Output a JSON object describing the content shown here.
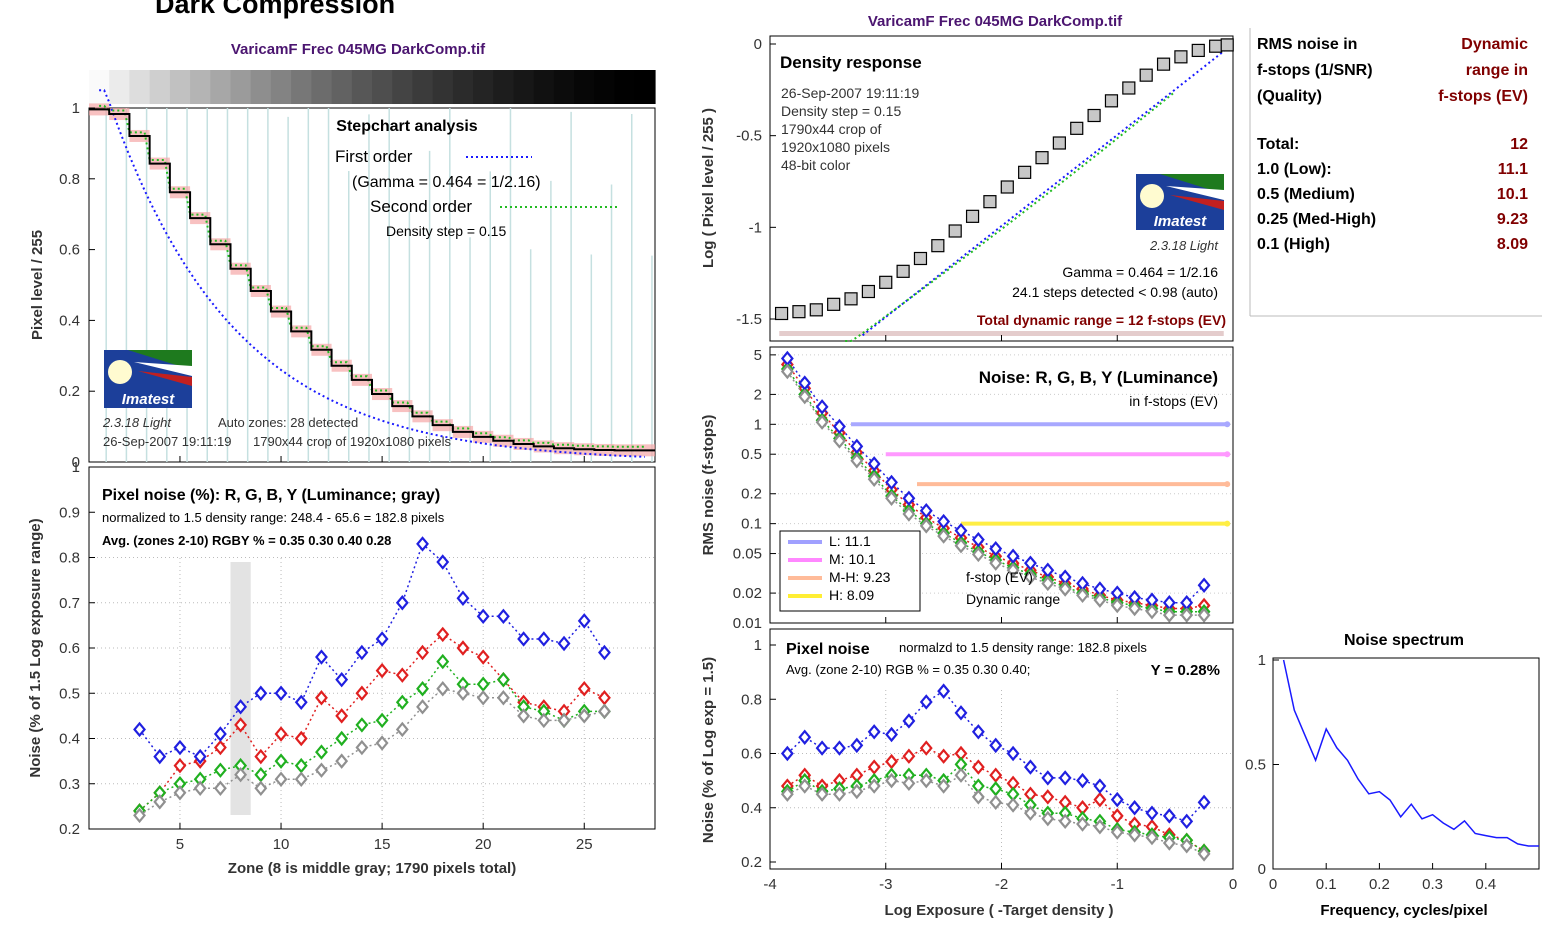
{
  "page": {
    "header_text": "Dark Compression",
    "file_title": "VaricamF Frec 045MG DarkComp.tif",
    "logo_text": "Imatest",
    "version_text": "2.3.18  Light"
  },
  "chart_data": [
    {
      "id": "stepchart",
      "type": "line",
      "title": "Stepchart analysis",
      "xlabel": "",
      "ylabel": "Pixel level / 255",
      "xlim": [
        0.5,
        28.5
      ],
      "ylim": [
        0,
        1
      ],
      "yticks": [
        "0",
        "0.2",
        "0.4",
        "0.6",
        "0.8",
        "1"
      ],
      "legend_title": "Stepchart analysis",
      "legend_first": "First order",
      "legend_gamma": "(Gamma = 0.464 = 1/2.16)",
      "legend_second": "Second order",
      "legend_density": "Density step = 0.15",
      "info_zones": "Auto zones:  28 detected",
      "info_date": "26-Sep-2007 19:11:19",
      "info_crop": "1790x44 crop of 1920x1080 pixels",
      "steps": [
        0.996,
        0.983,
        0.921,
        0.843,
        0.762,
        0.689,
        0.615,
        0.546,
        0.483,
        0.425,
        0.369,
        0.317,
        0.272,
        0.232,
        0.192,
        0.158,
        0.129,
        0.104,
        0.085,
        0.071,
        0.06,
        0.051,
        0.044,
        0.039,
        0.036,
        0.034,
        0.033,
        0.033
      ],
      "colors": {
        "measured": "#000000",
        "first_order": "#1a1aff",
        "second_order": "#22bb22",
        "band": "#f4a0a0",
        "spikes": "#c5e0e0"
      }
    },
    {
      "id": "zone-noise",
      "type": "scatter",
      "title": "Pixel noise (%): R, G, B, Y (Luminance; gray)",
      "subtitle": "normalized to 1.5 density range: 248.4 - 65.6 = 182.8 pixels",
      "note": "Avg. (zones 2-10) RGBY % = 0.35  0.30  0.40  0.28",
      "xlabel": "Zone  (8 is middle gray;  1790 pixels total)",
      "ylabel": "Noise (% of 1.5 Log exposure range)",
      "xlim": [
        0.5,
        28.5
      ],
      "ylim": [
        0.2,
        1.0
      ],
      "xticks": [
        "5",
        "10",
        "15",
        "20",
        "25"
      ],
      "yticks": [
        "0.2",
        "0.3",
        "0.4",
        "0.5",
        "0.6",
        "0.7",
        "0.8",
        "0.9",
        "1"
      ],
      "highlight_zone": 8,
      "x": [
        3,
        4,
        5,
        6,
        7,
        8,
        9,
        10,
        11,
        12,
        13,
        14,
        15,
        16,
        17,
        18,
        19,
        20,
        21,
        22,
        23,
        24,
        25,
        26
      ],
      "series": [
        {
          "name": "R",
          "color": "#e02020",
          "values": [
            0.24,
            0.28,
            0.34,
            0.35,
            0.38,
            0.43,
            0.36,
            0.41,
            0.4,
            0.49,
            0.45,
            0.5,
            0.55,
            0.54,
            0.59,
            0.63,
            0.6,
            0.58,
            0.53,
            0.48,
            0.47,
            0.46,
            0.51,
            0.49
          ]
        },
        {
          "name": "G",
          "color": "#20b020",
          "values": [
            0.24,
            0.28,
            0.3,
            0.31,
            0.33,
            0.34,
            0.32,
            0.35,
            0.34,
            0.37,
            0.4,
            0.43,
            0.44,
            0.48,
            0.51,
            0.57,
            0.52,
            0.52,
            0.53,
            0.47,
            0.46,
            0.44,
            0.46,
            0.46
          ]
        },
        {
          "name": "B",
          "color": "#2020e0",
          "values": [
            0.42,
            0.36,
            0.38,
            0.36,
            0.41,
            0.47,
            0.5,
            0.5,
            0.48,
            0.58,
            0.53,
            0.59,
            0.62,
            0.7,
            0.83,
            0.79,
            0.71,
            0.67,
            0.67,
            0.62,
            0.62,
            0.61,
            0.66,
            0.59
          ]
        },
        {
          "name": "Y",
          "color": "#909090",
          "values": [
            0.23,
            0.26,
            0.28,
            0.29,
            0.29,
            0.32,
            0.29,
            0.31,
            0.31,
            0.33,
            0.35,
            0.38,
            0.39,
            0.42,
            0.47,
            0.51,
            0.5,
            0.49,
            0.49,
            0.45,
            0.44,
            0.44,
            0.45,
            0.46
          ]
        }
      ]
    },
    {
      "id": "density-response",
      "type": "scatter",
      "title": "Density response",
      "ylabel": "Log ( Pixel level / 255 )",
      "xlim": [
        -4,
        0
      ],
      "ylim": [
        -1.62,
        0
      ],
      "yticks": [
        "-1.5",
        "-1",
        "-0.5",
        "0"
      ],
      "info_lines": [
        "26-Sep-2007 19:11:19",
        "Density step = 0.15",
        "1790x44 crop of",
        "1920x1080 pixels",
        "48-bit color"
      ],
      "gamma_text": "Gamma = 0.464 = 1/2.16",
      "steps_text": "24.1 steps detected < 0.98 (auto)",
      "dr_text": "Total dynamic range = 12 f-stops (EV)",
      "x": [
        -3.9,
        -3.75,
        -3.6,
        -3.45,
        -3.3,
        -3.15,
        -3.0,
        -2.85,
        -2.7,
        -2.55,
        -2.4,
        -2.25,
        -2.1,
        -1.95,
        -1.8,
        -1.65,
        -1.5,
        -1.35,
        -1.2,
        -1.05,
        -0.9,
        -0.75,
        -0.6,
        -0.45,
        -0.3,
        -0.15,
        -0.05
      ],
      "values": [
        -1.47,
        -1.46,
        -1.45,
        -1.42,
        -1.39,
        -1.35,
        -1.3,
        -1.24,
        -1.17,
        -1.1,
        -1.02,
        -0.94,
        -0.86,
        -0.78,
        -0.7,
        -0.62,
        -0.54,
        -0.46,
        -0.39,
        -0.31,
        -0.24,
        -0.17,
        -0.11,
        -0.07,
        -0.035,
        -0.012,
        -0.005
      ],
      "colors": {
        "marker": "#c8c8c8",
        "fit": "#1a1aff",
        "second": "#22bb22",
        "range_bar": "#c89090",
        "dr_text": "#800000"
      }
    },
    {
      "id": "fstop-noise",
      "type": "scatter",
      "title": "Noise: R, G, B, Y (Luminance)",
      "subtitle": "in f-stops (EV)",
      "ylabel": "RMS noise (f-stops)",
      "ylog": true,
      "xlim": [
        -4,
        0
      ],
      "ylim": [
        0.01,
        6
      ],
      "yticks": [
        "0.01",
        "0.02",
        "0.05",
        "0.1",
        "0.2",
        "0.5",
        "1",
        "2",
        "5"
      ],
      "annot1": "f-stop (EV)",
      "annot2": "Dynamic range",
      "legend": [
        {
          "label": "L:    11.1",
          "color": "#a0a0ff"
        },
        {
          "label": "M:    10.1",
          "color": "#ff88ff"
        },
        {
          "label": "M-H: 9.23",
          "color": "#ffbb99"
        },
        {
          "label": "H:     8.09",
          "color": "#ffee33"
        }
      ],
      "levels": [
        {
          "y": 1.0,
          "x_start": -3.3,
          "color": "#a8a8ff"
        },
        {
          "y": 0.5,
          "x_start": -3.0,
          "color": "#ff99ff"
        },
        {
          "y": 0.25,
          "x_start": -2.73,
          "color": "#ffbb99"
        },
        {
          "y": 0.1,
          "x_start": -2.35,
          "color": "#ffee44"
        }
      ],
      "x": [
        -3.85,
        -3.7,
        -3.55,
        -3.4,
        -3.25,
        -3.1,
        -2.95,
        -2.8,
        -2.65,
        -2.5,
        -2.35,
        -2.2,
        -2.05,
        -1.9,
        -1.75,
        -1.6,
        -1.45,
        -1.3,
        -1.15,
        -1.0,
        -0.85,
        -0.7,
        -0.55,
        -0.4,
        -0.25
      ],
      "series": [
        {
          "name": "R",
          "color": "#e02020",
          "values": [
            4.0,
            2.3,
            1.3,
            0.82,
            0.52,
            0.34,
            0.22,
            0.155,
            0.115,
            0.09,
            0.072,
            0.058,
            0.047,
            0.04,
            0.034,
            0.029,
            0.025,
            0.022,
            0.019,
            0.017,
            0.016,
            0.015,
            0.014,
            0.014,
            0.015
          ]
        },
        {
          "name": "G",
          "color": "#20b020",
          "values": [
            3.6,
            2.0,
            1.1,
            0.72,
            0.46,
            0.3,
            0.19,
            0.135,
            0.1,
            0.08,
            0.064,
            0.052,
            0.043,
            0.036,
            0.031,
            0.027,
            0.023,
            0.02,
            0.018,
            0.016,
            0.015,
            0.014,
            0.013,
            0.013,
            0.013
          ]
        },
        {
          "name": "B",
          "color": "#2020e0",
          "values": [
            4.6,
            2.6,
            1.5,
            0.95,
            0.6,
            0.4,
            0.26,
            0.18,
            0.135,
            0.105,
            0.085,
            0.069,
            0.056,
            0.047,
            0.04,
            0.034,
            0.029,
            0.025,
            0.022,
            0.02,
            0.018,
            0.017,
            0.016,
            0.016,
            0.024
          ]
        },
        {
          "name": "Y",
          "color": "#909090",
          "values": [
            3.4,
            1.9,
            1.05,
            0.68,
            0.43,
            0.28,
            0.18,
            0.125,
            0.095,
            0.075,
            0.06,
            0.049,
            0.04,
            0.034,
            0.029,
            0.025,
            0.022,
            0.019,
            0.017,
            0.015,
            0.014,
            0.013,
            0.012,
            0.012,
            0.012
          ]
        }
      ]
    },
    {
      "id": "logexp-noise",
      "type": "scatter",
      "title": "Pixel noise",
      "subtitle": "normalzd to 1.5 density range: 182.8 pixels",
      "note": "Avg. (zone 2-10) RGB % = 0.35  0.30  0.40;",
      "note_y": "Y = 0.28%",
      "xlabel": "Log Exposure ( -Target density )",
      "ylabel": "Noise (% of Log exp = 1.5)",
      "xlim": [
        -4,
        0
      ],
      "ylim": [
        0.2,
        1.0
      ],
      "xticks": [
        "-4",
        "-3",
        "-2",
        "-1",
        "0"
      ],
      "yticks": [
        "0.2",
        "0.4",
        "0.6",
        "0.8",
        "1"
      ],
      "x": [
        -3.85,
        -3.7,
        -3.55,
        -3.4,
        -3.25,
        -3.1,
        -2.95,
        -2.8,
        -2.65,
        -2.5,
        -2.35,
        -2.2,
        -2.05,
        -1.9,
        -1.75,
        -1.6,
        -1.45,
        -1.3,
        -1.15,
        -1.0,
        -0.85,
        -0.7,
        -0.55,
        -0.4,
        -0.25
      ],
      "series": [
        {
          "name": "R",
          "color": "#e02020",
          "values": [
            0.48,
            0.52,
            0.48,
            0.5,
            0.52,
            0.55,
            0.57,
            0.59,
            0.62,
            0.59,
            0.6,
            0.55,
            0.52,
            0.49,
            0.45,
            0.44,
            0.42,
            0.4,
            0.43,
            0.37,
            0.34,
            0.33,
            0.3,
            0.28,
            0.24
          ]
        },
        {
          "name": "G",
          "color": "#20b020",
          "values": [
            0.46,
            0.5,
            0.46,
            0.47,
            0.48,
            0.5,
            0.52,
            0.52,
            0.52,
            0.5,
            0.56,
            0.48,
            0.47,
            0.45,
            0.41,
            0.38,
            0.38,
            0.36,
            0.35,
            0.32,
            0.31,
            0.3,
            0.29,
            0.28,
            0.24
          ]
        },
        {
          "name": "B",
          "color": "#2020e0",
          "values": [
            0.6,
            0.66,
            0.62,
            0.62,
            0.63,
            0.68,
            0.67,
            0.72,
            0.79,
            0.83,
            0.75,
            0.68,
            0.63,
            0.6,
            0.55,
            0.51,
            0.51,
            0.5,
            0.48,
            0.43,
            0.4,
            0.38,
            0.37,
            0.35,
            0.42
          ]
        },
        {
          "name": "Y",
          "color": "#909090",
          "values": [
            0.45,
            0.48,
            0.45,
            0.45,
            0.46,
            0.48,
            0.5,
            0.49,
            0.5,
            0.48,
            0.52,
            0.44,
            0.42,
            0.41,
            0.38,
            0.36,
            0.35,
            0.34,
            0.33,
            0.31,
            0.3,
            0.29,
            0.27,
            0.26,
            0.23
          ]
        }
      ]
    },
    {
      "id": "noise-spectrum",
      "type": "line",
      "title": "Noise spectrum",
      "xlabel": "Frequency, cycles/pixel",
      "xlim": [
        0,
        0.5
      ],
      "ylim": [
        0,
        1
      ],
      "xticks": [
        "0",
        "0.1",
        "0.2",
        "0.3",
        "0.4"
      ],
      "yticks": [
        "0",
        "0.5",
        "1"
      ],
      "color": "#1a1aff",
      "x": [
        0.02,
        0.04,
        0.06,
        0.08,
        0.1,
        0.12,
        0.14,
        0.16,
        0.18,
        0.2,
        0.22,
        0.24,
        0.26,
        0.28,
        0.3,
        0.32,
        0.34,
        0.36,
        0.38,
        0.4,
        0.42,
        0.44,
        0.46,
        0.48,
        0.5
      ],
      "values": [
        1.0,
        0.76,
        0.64,
        0.52,
        0.67,
        0.58,
        0.52,
        0.43,
        0.36,
        0.37,
        0.33,
        0.25,
        0.31,
        0.24,
        0.26,
        0.22,
        0.19,
        0.23,
        0.17,
        0.16,
        0.15,
        0.15,
        0.12,
        0.11,
        0.11
      ]
    }
  ],
  "table": {
    "h_left_1": "RMS noise in",
    "h_left_2": "f-stops (1/SNR)",
    "h_left_3": "(Quality)",
    "h_right_1": "Dynamic",
    "h_right_2": "range in",
    "h_right_3": "f-stops (EV)",
    "rows": [
      {
        "label": "Total:",
        "value": "12"
      },
      {
        "label": "1.0   (Low):",
        "value": "11.1"
      },
      {
        "label": "0.5   (Medium)",
        "value": "10.1"
      },
      {
        "label": "0.25 (Med-High)",
        "value": "9.23"
      },
      {
        "label": "0.1   (High)",
        "value": "8.09"
      }
    ],
    "value_color": "#800000"
  }
}
